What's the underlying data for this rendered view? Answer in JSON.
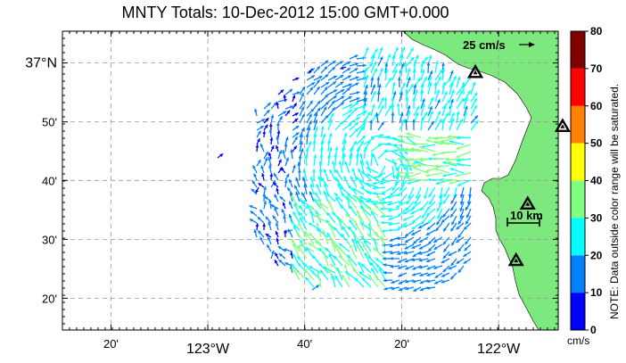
{
  "title": "MNTY Totals: 10-Dec-2012 15:00 GMT+0.000",
  "map": {
    "lat_labels": [
      {
        "label": "37°N",
        "lat": 37.0,
        "big": true
      },
      {
        "label": "50'",
        "lat": 36.833
      },
      {
        "label": "40'",
        "lat": 36.667
      },
      {
        "label": "30'",
        "lat": 36.5
      },
      {
        "label": "20'",
        "lat": 36.333
      }
    ],
    "lon_labels": [
      {
        "label": "20'",
        "lon": -123.333
      },
      {
        "label": "123°W",
        "lon": -123.0,
        "big": true
      },
      {
        "label": "40'",
        "lon": -122.667
      },
      {
        "label": "20'",
        "lon": -122.333
      },
      {
        "label": "122°W",
        "lon": -122.0,
        "big": true
      }
    ],
    "reference_vector_label": "25 cm/s",
    "scale_bar_label": "10 km",
    "land_color": "#7de87d",
    "sea_color": "#ffffff",
    "stations": [
      {
        "lon": -122.08,
        "lat": 36.973
      },
      {
        "lon": -121.9,
        "lat": 36.6
      },
      {
        "lon": -121.94,
        "lat": 36.44
      },
      {
        "lon": -121.78,
        "lat": 36.82
      }
    ]
  },
  "colorbar": {
    "ticks": [
      "0",
      "10",
      "20",
      "30",
      "40",
      "50",
      "60",
      "70",
      "80"
    ],
    "colors": [
      "#0000ff",
      "#0080ff",
      "#00ffff",
      "#80ff80",
      "#ffff00",
      "#ff8000",
      "#ff0000",
      "#800000"
    ],
    "unit": "cm/s",
    "note": "NOTE: Data outside color range will be saturated."
  }
}
